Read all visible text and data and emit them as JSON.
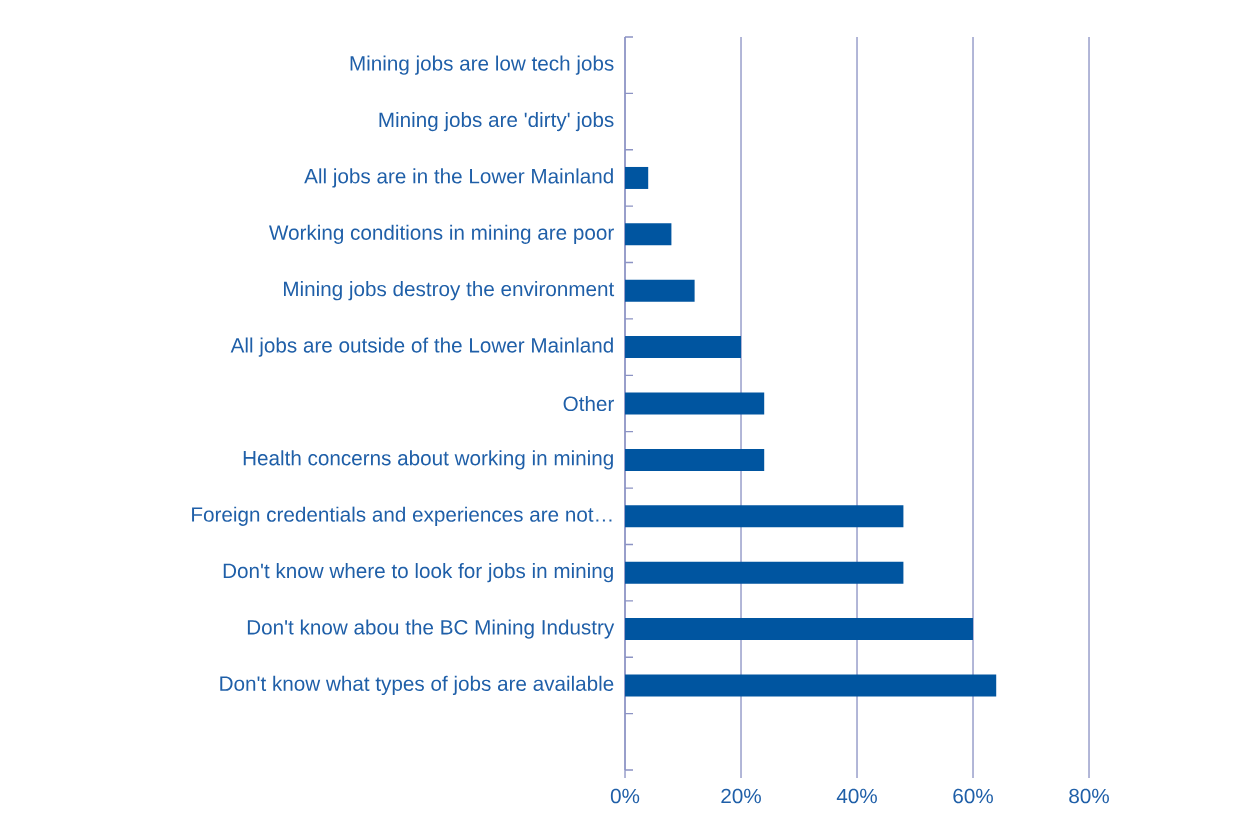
{
  "chart_data": {
    "type": "bar",
    "orientation": "horizontal",
    "categories": [
      "Mining jobs are low tech jobs",
      "Mining jobs are 'dirty' jobs",
      "All jobs are in the Lower Mainland",
      "Working conditions in mining are poor",
      "Mining jobs destroy the environment",
      "All jobs are outside of the Lower Mainland",
      "Other",
      "Health concerns about working in mining",
      "Foreign credentials and experiences are not…",
      "Don't know where to look for jobs in mining",
      "Don't know abou the BC Mining Industry",
      "Don't know what types of jobs are available",
      null
    ],
    "values": [
      0,
      0,
      4,
      8,
      12,
      20,
      24,
      24,
      48,
      48,
      60,
      64,
      null
    ],
    "color": "#0055a0",
    "xlim": [
      0,
      80
    ],
    "xticks": [
      {
        "value": 0,
        "label": "0%"
      },
      {
        "value": 20,
        "label": "20%"
      },
      {
        "value": 40,
        "label": "40%"
      },
      {
        "value": 60,
        "label": "60%"
      },
      {
        "value": 80,
        "label": "80%"
      }
    ],
    "grid": "x"
  }
}
